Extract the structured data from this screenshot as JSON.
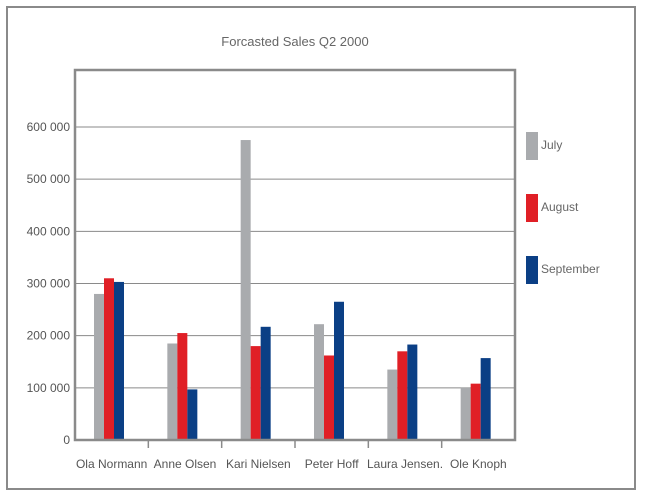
{
  "chart_data": {
    "type": "bar",
    "title": "Forcasted Sales Q2 2000",
    "categories": [
      "Ola Normann",
      "Anne Olsen",
      "Kari Nielsen",
      "Peter Hoff",
      "Laura Jensen.",
      "Ole Knoph"
    ],
    "series": [
      {
        "name": "July",
        "color": "#a9abae",
        "values": [
          280000,
          185000,
          575000,
          222000,
          135000,
          100000
        ]
      },
      {
        "name": "August",
        "color": "#e01f26",
        "values": [
          310000,
          205000,
          180000,
          162000,
          170000,
          108000
        ]
      },
      {
        "name": "September",
        "color": "#0b3f85",
        "values": [
          303000,
          97000,
          217000,
          265000,
          183000,
          157000
        ]
      }
    ],
    "y_ticks": [
      "0",
      "100 000",
      "200 000",
      "300 000",
      "400 000",
      "500 000",
      "600 000"
    ],
    "ylim": [
      0,
      600000
    ],
    "grid": true,
    "legend_position": "right"
  }
}
